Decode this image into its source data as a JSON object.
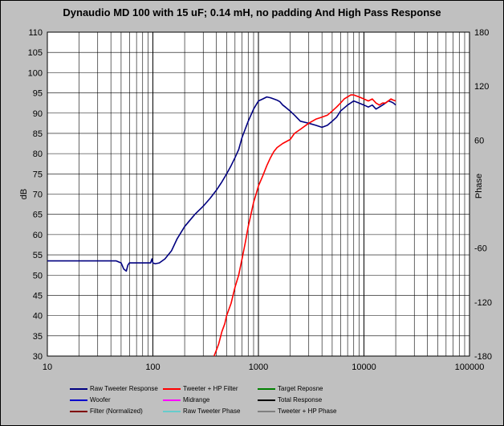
{
  "chart_data": {
    "type": "line",
    "title": "Dynaudio MD 100 with 15 uF; 0.14 mH, no padding  And High Pass Response",
    "ylabel": "dB",
    "y2label": "Phase",
    "xscale": "log",
    "xlim": [
      10,
      100000
    ],
    "ylim": [
      30,
      110
    ],
    "y2lim": [
      -180,
      180
    ],
    "x_ticks": [
      "10",
      "100",
      "1000",
      "10000",
      "100000"
    ],
    "y_ticks": [
      "30",
      "35",
      "40",
      "45",
      "50",
      "55",
      "60",
      "65",
      "70",
      "75",
      "80",
      "85",
      "90",
      "95",
      "100",
      "105",
      "110"
    ],
    "y2_ticks": [
      "-180",
      "-120",
      "-60",
      "60",
      "120",
      "180"
    ],
    "grid": true,
    "legend_position": "bottom",
    "series": [
      {
        "name": "Raw Tweeter Response",
        "color": "#000080",
        "x": [
          10,
          45,
          50,
          53,
          56,
          58,
          60,
          80,
          95,
          98,
          100,
          105,
          115,
          130,
          150,
          170,
          200,
          250,
          300,
          350,
          400,
          450,
          500,
          550,
          600,
          650,
          700,
          800,
          900,
          1000,
          1100,
          1200,
          1300,
          1400,
          1500,
          1600,
          1700,
          1800,
          2000,
          2200,
          2500,
          3000,
          3500,
          4000,
          4500,
          5000,
          5500,
          6000,
          7000,
          8000,
          9000,
          10000,
          11000,
          12000,
          13000,
          14000,
          15000,
          16000,
          17000,
          18000,
          19000,
          20000
        ],
        "y": [
          53.5,
          53.5,
          53,
          51.5,
          51,
          52.5,
          53,
          53,
          53,
          54,
          53,
          52.8,
          53,
          54,
          56,
          59,
          62,
          65,
          67,
          69,
          71,
          73,
          75,
          77,
          79,
          81,
          84,
          88,
          91,
          93,
          93.5,
          94,
          93.8,
          93.5,
          93.2,
          92.8,
          92,
          91.5,
          90.5,
          89.5,
          88,
          87.5,
          87,
          86.5,
          87,
          88,
          89,
          90.5,
          92,
          93,
          92.5,
          92,
          91.5,
          92,
          91,
          91.5,
          92,
          92.5,
          93,
          92.8,
          92.5,
          92
        ]
      },
      {
        "name": "Tweeter + HP Filter",
        "color": "#ff0000",
        "x": [
          380,
          400,
          420,
          450,
          480,
          500,
          550,
          600,
          650,
          700,
          750,
          800,
          850,
          900,
          950,
          1000,
          1100,
          1200,
          1300,
          1400,
          1500,
          1700,
          2000,
          2200,
          2500,
          3000,
          3500,
          4000,
          4500,
          5000,
          5500,
          6000,
          6500,
          7000,
          7500,
          8000,
          9000,
          10000,
          11000,
          12000,
          13000,
          14000,
          15000,
          16000,
          17000,
          18000,
          19000,
          20000
        ],
        "y": [
          30,
          31.5,
          33,
          36,
          38,
          40,
          43,
          47,
          50,
          54,
          58,
          62,
          65,
          68,
          70,
          72,
          74.5,
          77,
          79,
          80.5,
          81.5,
          82.5,
          83.5,
          85,
          86,
          87.5,
          88.5,
          89,
          89.5,
          90.5,
          91.5,
          92.5,
          93.5,
          94,
          94.5,
          94.5,
          94,
          93.5,
          93,
          93.5,
          92.5,
          92,
          92.5,
          92.5,
          93,
          93.5,
          93.2,
          93
        ]
      }
    ],
    "legend": [
      {
        "label": "Raw Tweeter Response",
        "color": "#000080"
      },
      {
        "label": "Tweeter + HP Filter",
        "color": "#ff0000"
      },
      {
        "label": "Target Reposne",
        "color": "#008000"
      },
      {
        "label": "Woofer",
        "color": "#0000cc"
      },
      {
        "label": "Midrange",
        "color": "#ff00ff"
      },
      {
        "label": "Total Response",
        "color": "#000000"
      },
      {
        "label": "Filter (Normalized)",
        "color": "#800000"
      },
      {
        "label": "Raw Tweeter Phase",
        "color": "#66cccc"
      },
      {
        "label": "Tweeter + HP Phase",
        "color": "#808080"
      }
    ]
  }
}
